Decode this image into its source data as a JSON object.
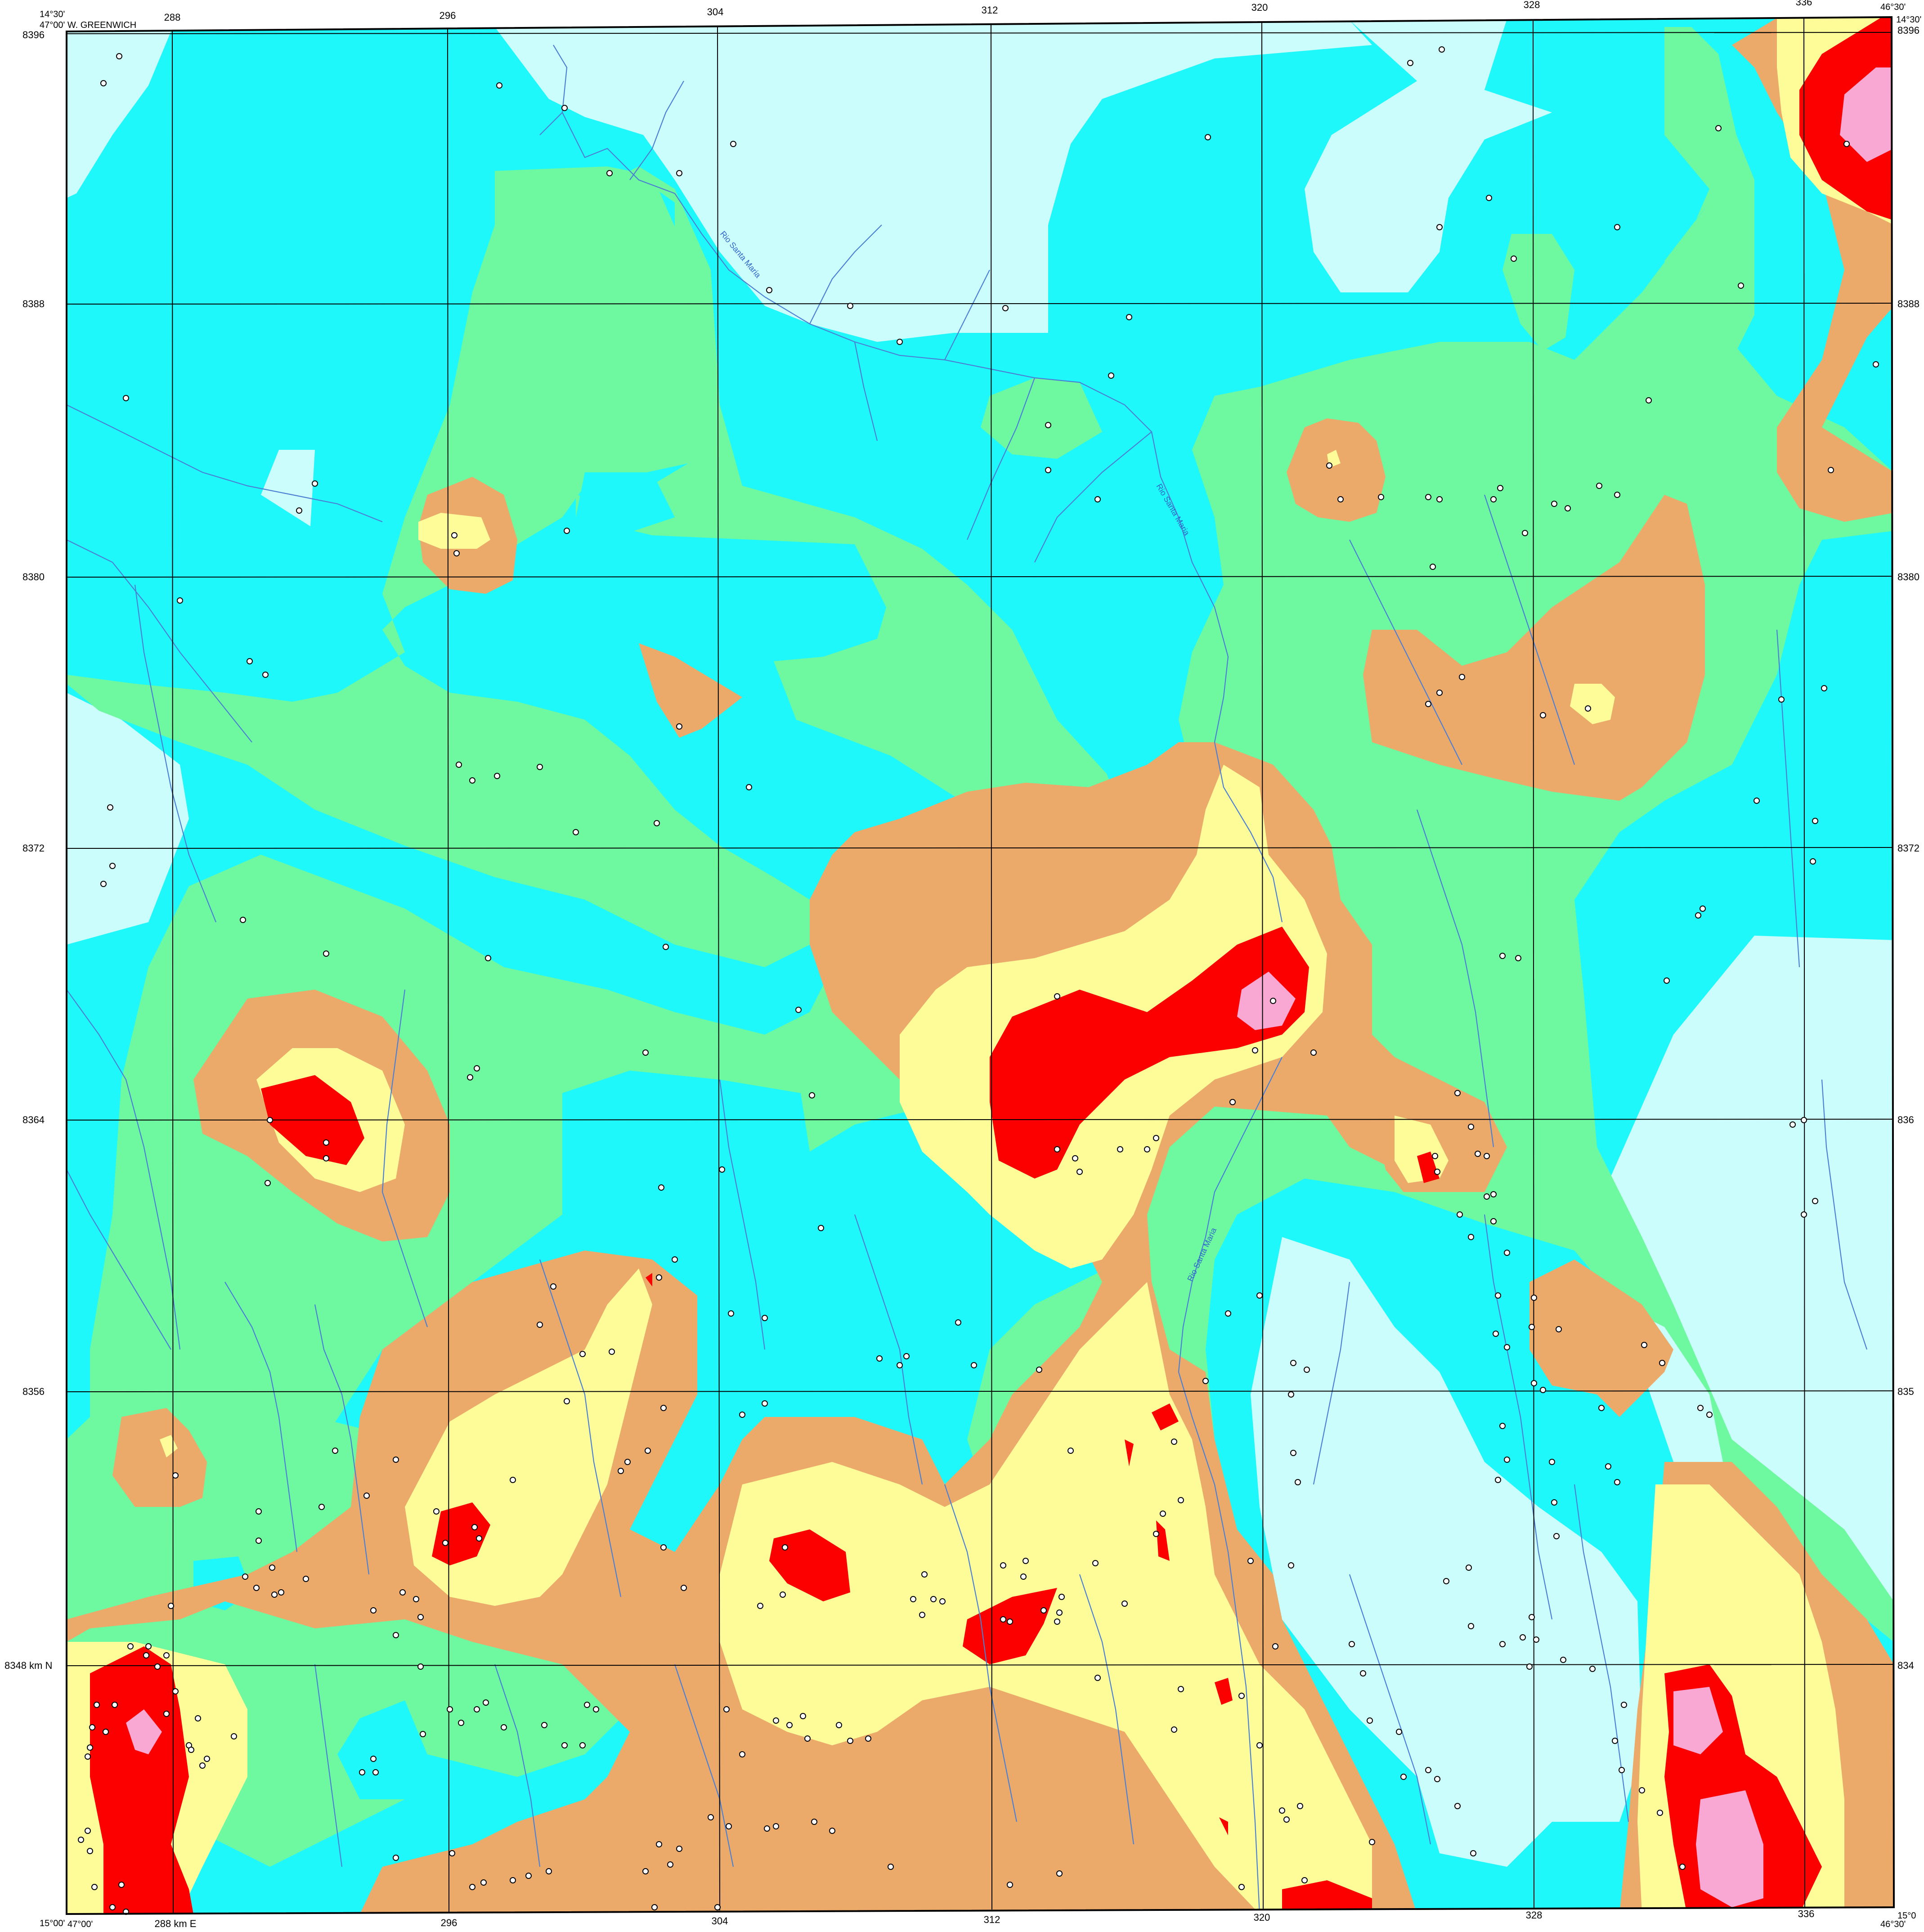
{
  "map": {
    "colors": {
      "zone_lightcyan": "#ccfdfd",
      "zone_cyan": "#1ff8fb",
      "zone_green": "#6ef89f",
      "zone_orange": "#eba96a",
      "zone_yellow": "#fefb99",
      "zone_red": "#fc0000",
      "zone_pink": "#f9a8d4",
      "rivers": "#4a7fd4",
      "grid": "#000000"
    },
    "labels": {
      "top_left_lat": "14°30'",
      "top_left_lon": "47°00' W. GREENWICH",
      "top_right_lat": "14°30'",
      "top_right_lon": "46°30'",
      "bottom_left_lat": "15°00'",
      "bottom_left_lon": "47°00'",
      "bottom_right_lat": "15°0",
      "bottom_right_lon": "46°30'",
      "easting_unit": "288 km E",
      "northing_unit": "8348 km N"
    },
    "eastings": [
      "288",
      "296",
      "304",
      "312",
      "320",
      "328",
      "336"
    ],
    "northings_left": [
      "8396",
      "8388",
      "8380",
      "8372",
      "8364",
      "8356"
    ],
    "northings_right": [
      "8396",
      "8388",
      "8380",
      "8372",
      "836",
      "835",
      "834"
    ],
    "rivers": [
      {
        "name": "Rio Santa Maria"
      },
      {
        "name": "Rio Santa Maria"
      },
      {
        "name": "Rio Santa Maria"
      }
    ]
  }
}
